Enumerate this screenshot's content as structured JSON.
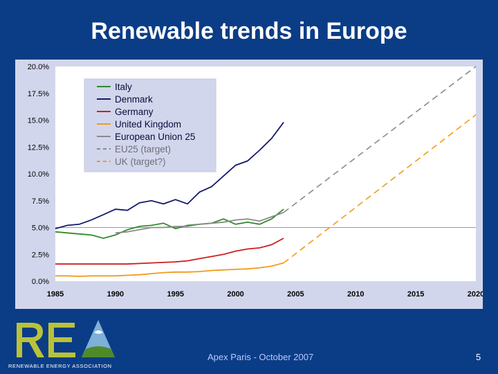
{
  "slide": {
    "title": "Renewable trends in Europe",
    "footer": "Apex Paris - October 2007",
    "page_number": "5"
  },
  "logo": {
    "name": "REA",
    "tagline": "RENEWABLE ENERGY ASSOCIATION"
  },
  "colors": {
    "background": "#0b3d86",
    "panel": "#d2d6ec",
    "plot": "#ffffff"
  },
  "chart_data": {
    "type": "line",
    "title": "",
    "xlabel": "",
    "ylabel": "",
    "xlim": [
      1985,
      2020
    ],
    "ylim": [
      0,
      20
    ],
    "x_ticks": [
      "1985",
      "1990",
      "1995",
      "2000",
      "2005",
      "2010",
      "2015",
      "2020"
    ],
    "y_ticks": [
      "0.0%",
      "2.5%",
      "5.0%",
      "7.5%",
      "10.0%",
      "12.5%",
      "15.0%",
      "17.5%",
      "20.0%"
    ],
    "legend_position": "top-left",
    "reference_line": 5.0,
    "series": [
      {
        "name": "Italy",
        "color": "#2e8b2e",
        "dash": false,
        "points": [
          [
            1985,
            4.6
          ],
          [
            1986,
            4.5
          ],
          [
            1987,
            4.4
          ],
          [
            1988,
            4.3
          ],
          [
            1989,
            4.0
          ],
          [
            1990,
            4.3
          ],
          [
            1991,
            4.8
          ],
          [
            1992,
            5.1
          ],
          [
            1993,
            5.2
          ],
          [
            1994,
            5.4
          ],
          [
            1995,
            4.9
          ],
          [
            1996,
            5.2
          ],
          [
            1997,
            5.3
          ],
          [
            1998,
            5.4
          ],
          [
            1999,
            5.8
          ],
          [
            2000,
            5.3
          ],
          [
            2001,
            5.5
          ],
          [
            2002,
            5.3
          ],
          [
            2003,
            5.8
          ],
          [
            2004,
            6.7
          ]
        ]
      },
      {
        "name": "Denmark",
        "color": "#141a6e",
        "dash": false,
        "points": [
          [
            1985,
            4.9
          ],
          [
            1986,
            5.2
          ],
          [
            1987,
            5.3
          ],
          [
            1988,
            5.7
          ],
          [
            1989,
            6.2
          ],
          [
            1990,
            6.7
          ],
          [
            1991,
            6.6
          ],
          [
            1992,
            7.3
          ],
          [
            1993,
            7.5
          ],
          [
            1994,
            7.2
          ],
          [
            1995,
            7.6
          ],
          [
            1996,
            7.2
          ],
          [
            1997,
            8.3
          ],
          [
            1998,
            8.8
          ],
          [
            1999,
            9.8
          ],
          [
            2000,
            10.8
          ],
          [
            2001,
            11.2
          ],
          [
            2002,
            12.2
          ],
          [
            2003,
            13.3
          ],
          [
            2004,
            14.8
          ]
        ]
      },
      {
        "name": "Germany",
        "color": "#cc1f1f",
        "dash": false,
        "points": [
          [
            1985,
            1.6
          ],
          [
            1987,
            1.6
          ],
          [
            1989,
            1.6
          ],
          [
            1991,
            1.6
          ],
          [
            1993,
            1.7
          ],
          [
            1995,
            1.8
          ],
          [
            1996,
            1.9
          ],
          [
            1997,
            2.1
          ],
          [
            1998,
            2.3
          ],
          [
            1999,
            2.5
          ],
          [
            2000,
            2.8
          ],
          [
            2001,
            3.0
          ],
          [
            2002,
            3.1
          ],
          [
            2003,
            3.4
          ],
          [
            2004,
            4.0
          ]
        ]
      },
      {
        "name": "United Kingdom",
        "color": "#f29a1a",
        "dash": false,
        "points": [
          [
            1985,
            0.5
          ],
          [
            1986,
            0.5
          ],
          [
            1987,
            0.45
          ],
          [
            1988,
            0.5
          ],
          [
            1989,
            0.5
          ],
          [
            1990,
            0.5
          ],
          [
            1991,
            0.55
          ],
          [
            1992,
            0.6
          ],
          [
            1993,
            0.7
          ],
          [
            1994,
            0.8
          ],
          [
            1995,
            0.85
          ],
          [
            1996,
            0.85
          ],
          [
            1997,
            0.9
          ],
          [
            1998,
            1.0
          ],
          [
            1999,
            1.05
          ],
          [
            2000,
            1.1
          ],
          [
            2001,
            1.15
          ],
          [
            2002,
            1.25
          ],
          [
            2003,
            1.4
          ],
          [
            2004,
            1.7
          ]
        ]
      },
      {
        "name": "European Union 25",
        "color": "#8a8a8a",
        "dash": false,
        "points": [
          [
            1990,
            4.5
          ],
          [
            1991,
            4.6
          ],
          [
            1992,
            4.8
          ],
          [
            1993,
            5.0
          ],
          [
            1994,
            5.0
          ],
          [
            1995,
            5.1
          ],
          [
            1996,
            5.1
          ],
          [
            1997,
            5.3
          ],
          [
            1998,
            5.4
          ],
          [
            1999,
            5.5
          ],
          [
            2000,
            5.7
          ],
          [
            2001,
            5.8
          ],
          [
            2002,
            5.6
          ],
          [
            2003,
            6.0
          ],
          [
            2004,
            6.4
          ]
        ]
      },
      {
        "name": "EU25 (target)",
        "color": "#8a8a8a",
        "dash": true,
        "points": [
          [
            2004,
            6.4
          ],
          [
            2020,
            20.0
          ]
        ]
      },
      {
        "name": "UK (target?)",
        "color": "#f29a1a",
        "dash": true,
        "points": [
          [
            2004,
            1.7
          ],
          [
            2020,
            15.5
          ]
        ]
      }
    ]
  }
}
